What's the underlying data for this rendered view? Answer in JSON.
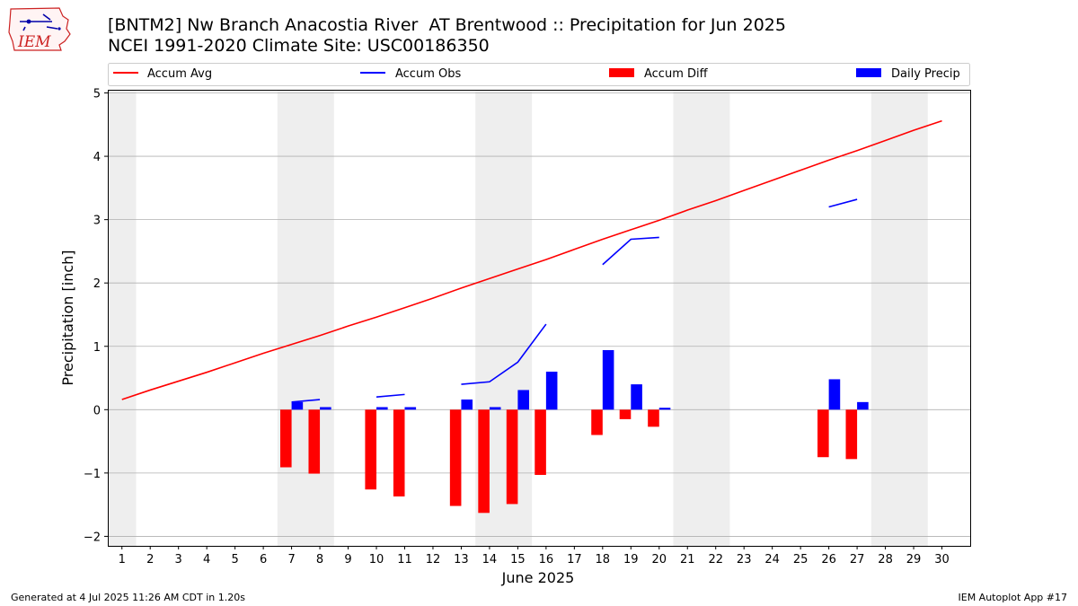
{
  "header": {
    "title_line1": "[BNTM2] Nw Branch Anacostia River  AT Brentwood :: Precipitation for Jun 2025",
    "title_line2": "NCEI 1991-2020 Climate Site: USC00186350",
    "logo_text": "IEM"
  },
  "footer": {
    "left": "Generated at 4 Jul 2025 11:26 AM CDT in 1.20s",
    "right": "IEM Autoplot App #17"
  },
  "colors": {
    "accum_avg": "#ff0000",
    "accum_obs": "#0000ff",
    "accum_diff": "#ff0000",
    "daily_precip": "#0000ff",
    "weekend_shade": "#eeeeee",
    "grid": "#b0b0b0"
  },
  "chart_data": {
    "type": "bar",
    "xlabel": "June 2025",
    "ylabel": "Precipitation [inch]",
    "xlim": [
      0.5,
      31.0
    ],
    "ylim": [
      -2.15,
      5.05
    ],
    "yticks": [
      -2,
      -1,
      0,
      1,
      2,
      3,
      4,
      5
    ],
    "xticks": [
      1,
      2,
      3,
      4,
      5,
      6,
      7,
      8,
      9,
      10,
      11,
      12,
      13,
      14,
      15,
      16,
      17,
      18,
      19,
      20,
      21,
      22,
      23,
      24,
      25,
      26,
      27,
      28,
      29,
      30
    ],
    "grid": "horizontal",
    "legend_position": "top",
    "legend": [
      "Accum Avg",
      "Accum Obs",
      "Accum Diff",
      "Daily Precip"
    ],
    "weekend_shading": [
      [
        0.5,
        1.5
      ],
      [
        6.5,
        8.5
      ],
      [
        13.5,
        15.5
      ],
      [
        20.5,
        22.5
      ],
      [
        27.5,
        29.5
      ]
    ],
    "accum_avg": {
      "name": "Accum Avg",
      "days": [
        1,
        2,
        3,
        4,
        5,
        6,
        7,
        8,
        9,
        10,
        11,
        12,
        13,
        14,
        15,
        16,
        17,
        18,
        19,
        20,
        21,
        22,
        23,
        24,
        25,
        26,
        27,
        28,
        29,
        30
      ],
      "values": [
        0.16,
        0.31,
        0.45,
        0.59,
        0.74,
        0.89,
        1.03,
        1.17,
        1.32,
        1.46,
        1.61,
        1.76,
        1.92,
        2.07,
        2.22,
        2.37,
        2.53,
        2.69,
        2.84,
        2.99,
        3.15,
        3.3,
        3.46,
        3.62,
        3.78,
        3.94,
        4.09,
        4.25,
        4.41,
        4.56
      ]
    },
    "accum_obs": {
      "name": "Accum Obs",
      "segments": [
        {
          "days": [
            7,
            8
          ],
          "values": [
            0.12,
            0.16
          ]
        },
        {
          "days": [
            10,
            11
          ],
          "values": [
            0.2,
            0.24
          ]
        },
        {
          "days": [
            13,
            14,
            15,
            16
          ],
          "values": [
            0.4,
            0.44,
            0.75,
            1.35
          ]
        },
        {
          "days": [
            18,
            19,
            20
          ],
          "values": [
            2.29,
            2.69,
            2.72
          ]
        },
        {
          "days": [
            26,
            27
          ],
          "values": [
            3.2,
            3.32
          ]
        }
      ]
    },
    "accum_diff": {
      "name": "Accum Diff",
      "days": [
        7,
        8,
        10,
        11,
        13,
        14,
        15,
        16,
        18,
        19,
        20,
        26,
        27
      ],
      "values": [
        -0.91,
        -1.01,
        -1.26,
        -1.37,
        -1.52,
        -1.63,
        -1.49,
        -1.03,
        -0.4,
        -0.15,
        -0.27,
        -0.75,
        -0.78
      ]
    },
    "daily_precip": {
      "name": "Daily Precip",
      "days": [
        7,
        8,
        10,
        11,
        13,
        14,
        15,
        16,
        18,
        19,
        20,
        26,
        27
      ],
      "values": [
        0.12,
        0.04,
        0.04,
        0.04,
        0.16,
        0.04,
        0.31,
        0.6,
        0.94,
        0.4,
        0.03,
        0.48,
        0.12
      ]
    }
  }
}
